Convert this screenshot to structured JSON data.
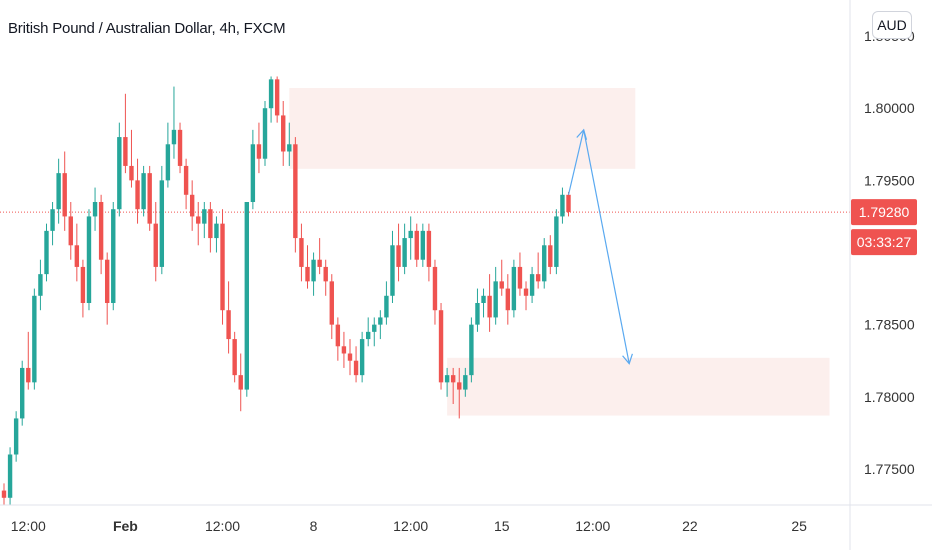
{
  "header": {
    "title": "British Pound / Australian Dollar, 4h, FXCM",
    "currency_button": "AUD"
  },
  "colors": {
    "up": "#26a69a",
    "down": "#ef5350",
    "zone_fill": "#fbe9e7",
    "arrow": "#5aa9f0",
    "price_line": "#ef5350",
    "axis_line": "#e0e3eb"
  },
  "chart_data": {
    "type": "candlestick",
    "title": "British Pound / Australian Dollar, 4h, FXCM",
    "ylim": [
      1.7725,
      1.8075
    ],
    "y_ticks": [
      "1.80500",
      "1.80000",
      "1.79500",
      "1.78500",
      "1.78000",
      "1.77500"
    ],
    "y_tick_values": [
      1.805,
      1.8,
      1.795,
      1.785,
      1.78,
      1.775
    ],
    "x_ticks": [
      {
        "label": "12:00",
        "bar": 4
      },
      {
        "label": "Feb",
        "bar": 20,
        "bold": true
      },
      {
        "label": "12:00",
        "bar": 36
      },
      {
        "label": "8",
        "bar": 51
      },
      {
        "label": "12:00",
        "bar": 67
      },
      {
        "label": "15",
        "bar": 82
      },
      {
        "label": "12:00",
        "bar": 97
      },
      {
        "label": "22",
        "bar": 113
      },
      {
        "label": "25",
        "bar": 131
      }
    ],
    "last_price": "1.79280",
    "last_price_value": 1.7928,
    "countdown": "03:33:27",
    "candles": [
      [
        1.7735,
        1.774,
        1.7725,
        1.773
      ],
      [
        1.773,
        1.7765,
        1.7725,
        1.776
      ],
      [
        1.776,
        1.779,
        1.7755,
        1.7785
      ],
      [
        1.7785,
        1.7825,
        1.778,
        1.782
      ],
      [
        1.782,
        1.7845,
        1.7805,
        1.781
      ],
      [
        1.781,
        1.7875,
        1.7805,
        1.787
      ],
      [
        1.787,
        1.7895,
        1.786,
        1.7885
      ],
      [
        1.7885,
        1.792,
        1.788,
        1.7915
      ],
      [
        1.7915,
        1.7935,
        1.7905,
        1.793
      ],
      [
        1.793,
        1.7965,
        1.792,
        1.7955
      ],
      [
        1.7955,
        1.797,
        1.7915,
        1.7925
      ],
      [
        1.7925,
        1.7935,
        1.7895,
        1.7905
      ],
      [
        1.7905,
        1.792,
        1.788,
        1.789
      ],
      [
        1.789,
        1.7895,
        1.7855,
        1.7865
      ],
      [
        1.7865,
        1.793,
        1.786,
        1.7925
      ],
      [
        1.7925,
        1.7945,
        1.7915,
        1.7935
      ],
      [
        1.7935,
        1.794,
        1.7885,
        1.7895
      ],
      [
        1.7895,
        1.79,
        1.785,
        1.7865
      ],
      [
        1.7865,
        1.7935,
        1.786,
        1.793
      ],
      [
        1.793,
        1.799,
        1.7925,
        1.798
      ],
      [
        1.798,
        1.801,
        1.7955,
        1.796
      ],
      [
        1.796,
        1.7985,
        1.7945,
        1.795
      ],
      [
        1.795,
        1.7965,
        1.792,
        1.793
      ],
      [
        1.793,
        1.796,
        1.7925,
        1.7955
      ],
      [
        1.7955,
        1.796,
        1.7915,
        1.792
      ],
      [
        1.792,
        1.7935,
        1.788,
        1.789
      ],
      [
        1.789,
        1.796,
        1.7885,
        1.795
      ],
      [
        1.795,
        1.799,
        1.7945,
        1.7975
      ],
      [
        1.7975,
        1.8015,
        1.7965,
        1.7985
      ],
      [
        1.7985,
        1.799,
        1.7955,
        1.796
      ],
      [
        1.796,
        1.7965,
        1.793,
        1.794
      ],
      [
        1.794,
        1.795,
        1.7915,
        1.7925
      ],
      [
        1.7925,
        1.7935,
        1.7905,
        1.792
      ],
      [
        1.792,
        1.7935,
        1.791,
        1.793
      ],
      [
        1.793,
        1.7935,
        1.79,
        1.791
      ],
      [
        1.791,
        1.7925,
        1.79,
        1.792
      ],
      [
        1.792,
        1.793,
        1.785,
        1.786
      ],
      [
        1.786,
        1.788,
        1.783,
        1.784
      ],
      [
        1.784,
        1.7845,
        1.781,
        1.7815
      ],
      [
        1.7815,
        1.783,
        1.779,
        1.7805
      ],
      [
        1.7805,
        1.7935,
        1.78,
        1.7935
      ],
      [
        1.7935,
        1.7985,
        1.793,
        1.7975
      ],
      [
        1.7975,
        1.799,
        1.7955,
        1.7965
      ],
      [
        1.7965,
        1.8005,
        1.796,
        1.8
      ],
      [
        1.8,
        1.8022,
        1.799,
        1.802
      ],
      [
        1.802,
        1.8022,
        1.799,
        1.7995
      ],
      [
        1.7995,
        1.8005,
        1.796,
        1.797
      ],
      [
        1.797,
        1.799,
        1.796,
        1.7975
      ],
      [
        1.7975,
        1.798,
        1.79,
        1.791
      ],
      [
        1.791,
        1.792,
        1.788,
        1.789
      ],
      [
        1.789,
        1.7905,
        1.7875,
        1.788
      ],
      [
        1.788,
        1.79,
        1.787,
        1.7895
      ],
      [
        1.7895,
        1.791,
        1.7885,
        1.789
      ],
      [
        1.789,
        1.7895,
        1.787,
        1.788
      ],
      [
        1.788,
        1.7885,
        1.784,
        1.785
      ],
      [
        1.785,
        1.7855,
        1.7825,
        1.7835
      ],
      [
        1.7835,
        1.7845,
        1.782,
        1.783
      ],
      [
        1.783,
        1.784,
        1.7815,
        1.7825
      ],
      [
        1.7825,
        1.7835,
        1.781,
        1.7815
      ],
      [
        1.7815,
        1.7845,
        1.781,
        1.784
      ],
      [
        1.784,
        1.7855,
        1.7835,
        1.7845
      ],
      [
        1.7845,
        1.7855,
        1.7835,
        1.785
      ],
      [
        1.785,
        1.786,
        1.784,
        1.7855
      ],
      [
        1.7855,
        1.788,
        1.785,
        1.787
      ],
      [
        1.787,
        1.7915,
        1.7865,
        1.7905
      ],
      [
        1.7905,
        1.792,
        1.788,
        1.789
      ],
      [
        1.789,
        1.792,
        1.7885,
        1.791
      ],
      [
        1.791,
        1.7925,
        1.7895,
        1.7915
      ],
      [
        1.7915,
        1.792,
        1.789,
        1.7895
      ],
      [
        1.7895,
        1.792,
        1.789,
        1.7915
      ],
      [
        1.7915,
        1.792,
        1.788,
        1.789
      ],
      [
        1.789,
        1.7895,
        1.785,
        1.786
      ],
      [
        1.786,
        1.7865,
        1.7805,
        1.781
      ],
      [
        1.781,
        1.782,
        1.78,
        1.7815
      ],
      [
        1.7815,
        1.782,
        1.7795,
        1.781
      ],
      [
        1.781,
        1.782,
        1.7785,
        1.7805
      ],
      [
        1.7805,
        1.782,
        1.78,
        1.7815
      ],
      [
        1.7815,
        1.7855,
        1.781,
        1.785
      ],
      [
        1.785,
        1.7875,
        1.7845,
        1.7865
      ],
      [
        1.7865,
        1.7875,
        1.7855,
        1.787
      ],
      [
        1.787,
        1.7885,
        1.7845,
        1.7855
      ],
      [
        1.7855,
        1.789,
        1.785,
        1.788
      ],
      [
        1.788,
        1.7895,
        1.787,
        1.7875
      ],
      [
        1.7875,
        1.7885,
        1.785,
        1.786
      ],
      [
        1.786,
        1.7895,
        1.7855,
        1.789
      ],
      [
        1.789,
        1.79,
        1.787,
        1.7875
      ],
      [
        1.7875,
        1.788,
        1.786,
        1.787
      ],
      [
        1.787,
        1.789,
        1.7865,
        1.7885
      ],
      [
        1.7885,
        1.79,
        1.7875,
        1.788
      ],
      [
        1.788,
        1.791,
        1.7875,
        1.7905
      ],
      [
        1.7905,
        1.7912,
        1.7885,
        1.789
      ],
      [
        1.789,
        1.793,
        1.7885,
        1.7925
      ],
      [
        1.7925,
        1.7945,
        1.792,
        1.794
      ],
      [
        1.794,
        1.7942,
        1.7925,
        1.7928
      ]
    ],
    "zones": [
      {
        "start_bar": 47,
        "end_bar": 104,
        "top": 1.8014,
        "bottom": 1.7958
      },
      {
        "start_bar": 73,
        "end_bar": 136,
        "top": 1.7827,
        "bottom": 1.7787
      }
    ],
    "arrow_path": [
      {
        "bar": 93,
        "price": 1.794
      },
      {
        "bar": 95.5,
        "price": 1.7985
      },
      {
        "bar": 103,
        "price": 1.7823
      }
    ]
  }
}
